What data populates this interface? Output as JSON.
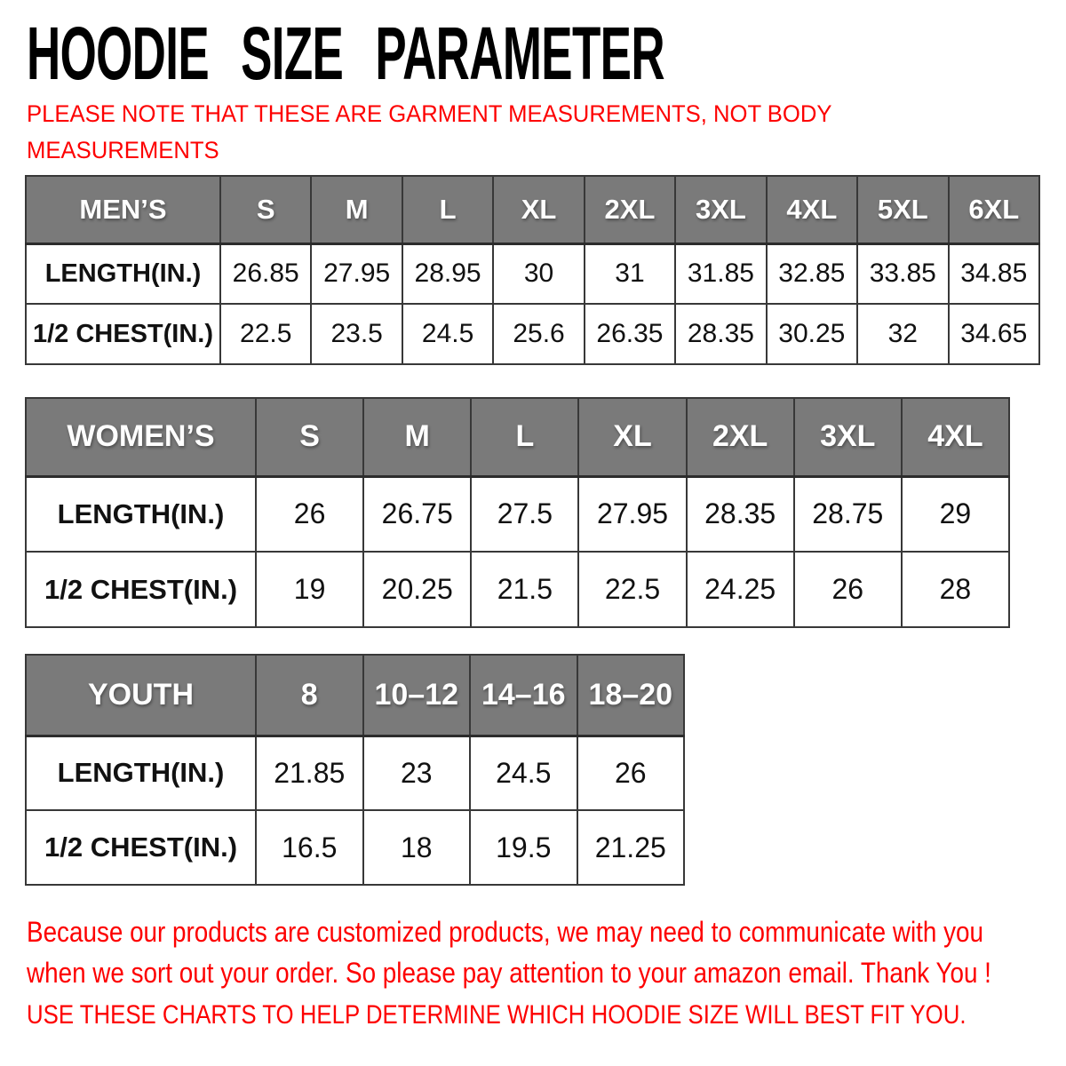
{
  "title": "HOODIE SIZE PARAMETER",
  "note": {
    "lines": [
      "PLEASE NOTE THAT THESE ARE GARMENT MEASUREMENTS, NOT BODY",
      "MEASUREMENTS"
    ]
  },
  "colors": {
    "header_bg": "#7a7a7a",
    "header_text": "#ffffff",
    "accent_red": "#fd0000",
    "border": "#383838"
  },
  "tables": [
    {
      "id": "mens",
      "header": [
        "MEN’S",
        "S",
        "M",
        "L",
        "XL",
        "2XL",
        "3XL",
        "4XL",
        "5XL",
        "6XL"
      ],
      "rows": [
        [
          "LENGTH(IN.)",
          "26.85",
          "27.95",
          "28.95",
          "30",
          "31",
          "31.85",
          "32.85",
          "33.85",
          "34.85"
        ],
        [
          "1/2 CHEST(IN.)",
          "22.5",
          "23.5",
          "24.5",
          "25.6",
          "26.35",
          "28.35",
          "30.25",
          "32",
          "34.65"
        ]
      ]
    },
    {
      "id": "womens",
      "header": [
        "WOMEN’S",
        "S",
        "M",
        "L",
        "XL",
        "2XL",
        "3XL",
        "4XL"
      ],
      "rows": [
        [
          "LENGTH(IN.)",
          "26",
          "26.75",
          "27.5",
          "27.95",
          "28.35",
          "28.75",
          "29"
        ],
        [
          "1/2 CHEST(IN.)",
          "19",
          "20.25",
          "21.5",
          "22.5",
          "24.25",
          "26",
          "28"
        ]
      ]
    },
    {
      "id": "youth",
      "header": [
        "YOUTH",
        "8",
        "10–12",
        "14–16",
        "18–20"
      ],
      "rows": [
        [
          "LENGTH(IN.)",
          "21.85",
          "23",
          "24.5",
          "26"
        ],
        [
          "1/2 CHEST(IN.)",
          "16.5",
          "18",
          "19.5",
          "21.25"
        ]
      ]
    }
  ],
  "footer": {
    "lines": [
      "Because our products are customized products, we may need to communicate with you",
      "when we sort out your order. So please pay attention to your amazon email. Thank You !"
    ],
    "cta": "USE THESE CHARTS TO HELP DETERMINE WHICH HOODIE SIZE WILL BEST FIT YOU."
  }
}
